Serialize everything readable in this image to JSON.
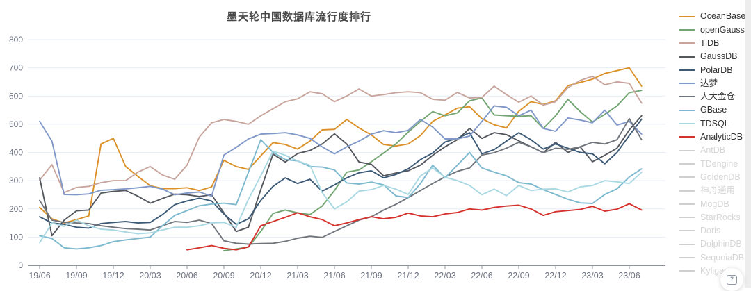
{
  "page": {
    "title": "墨天轮中国数据库流行度排行",
    "help_icon": "?"
  },
  "chart_data": {
    "type": "line",
    "title": "墨天轮中国数据库流行度排行",
    "xlabel": "",
    "ylabel": "",
    "ylim": [
      0,
      800
    ],
    "y_ticks": [
      0,
      100,
      200,
      300,
      400,
      500,
      600,
      700,
      800
    ],
    "x_tick_labels": [
      "19/06",
      "19/09",
      "19/12",
      "20/03",
      "20/06",
      "20/09",
      "20/12",
      "21/03",
      "21/06",
      "21/09",
      "21/12",
      "22/03",
      "22/06",
      "22/09",
      "22/12",
      "23/03",
      "23/06"
    ],
    "x_monthly": [
      "19/06",
      "19/07",
      "19/08",
      "19/09",
      "19/10",
      "19/11",
      "19/12",
      "20/01",
      "20/02",
      "20/03",
      "20/04",
      "20/05",
      "20/06",
      "20/07",
      "20/08",
      "20/09",
      "20/10",
      "20/11",
      "20/12",
      "21/01",
      "21/02",
      "21/03",
      "21/04",
      "21/05",
      "21/06",
      "21/07",
      "21/08",
      "21/09",
      "21/10",
      "21/11",
      "21/12",
      "22/01",
      "22/02",
      "22/03",
      "22/04",
      "22/05",
      "22/06",
      "22/07",
      "22/08",
      "22/09",
      "22/10",
      "22/11",
      "22/12",
      "23/01",
      "23/02",
      "23/03",
      "23/04",
      "23/05",
      "23/06",
      "23/07"
    ],
    "grid": true,
    "legend_position": "right",
    "series": [
      {
        "name": "OceanBase",
        "color": "#db9128",
        "start_index": 0,
        "values": [
          205,
          165,
          150,
          162,
          175,
          430,
          450,
          350,
          315,
          282,
          272,
          272,
          275,
          265,
          278,
          372,
          350,
          340,
          388,
          435,
          428,
          412,
          440,
          480,
          482,
          517,
          487,
          462,
          428,
          423,
          430,
          460,
          510,
          533,
          557,
          562,
          520,
          498,
          487,
          546,
          580,
          570,
          583,
          637,
          648,
          660,
          680,
          690,
          700,
          635
        ]
      },
      {
        "name": "openGauss",
        "color": "#72a572",
        "start_index": 15,
        "values": [
          52,
          58,
          65,
          120,
          184,
          196,
          186,
          180,
          210,
          265,
          330,
          338,
          367,
          398,
          430,
          472,
          510,
          545,
          530,
          540,
          583,
          593,
          533,
          530,
          528,
          530,
          485,
          530,
          588,
          545,
          508,
          535,
          565,
          612,
          620
        ]
      },
      {
        "name": "TiDB",
        "color": "#c7a59d",
        "start_index": 0,
        "values": [
          302,
          357,
          258,
          276,
          280,
          293,
          300,
          300,
          330,
          350,
          320,
          305,
          355,
          455,
          505,
          517,
          510,
          500,
          530,
          555,
          580,
          590,
          615,
          608,
          580,
          600,
          625,
          600,
          605,
          612,
          615,
          612,
          588,
          585,
          613,
          593,
          595,
          635,
          605,
          578,
          600,
          568,
          580,
          630,
          655,
          670,
          640,
          650,
          645,
          575
        ]
      },
      {
        "name": "GaussDB",
        "color": "#54585e",
        "start_index": 0,
        "values": [
          310,
          105,
          160,
          193,
          196,
          256,
          262,
          265,
          245,
          220,
          237,
          252,
          250,
          244,
          250,
          186,
          120,
          135,
          268,
          394,
          366,
          396,
          407,
          430,
          466,
          430,
          366,
          358,
          317,
          327,
          335,
          355,
          390,
          420,
          445,
          485,
          450,
          470,
          463,
          441,
          420,
          399,
          436,
          400,
          420,
          367,
          390,
          415,
          480,
          530
        ]
      },
      {
        "name": "PolarDB",
        "color": "#3c5a76",
        "start_index": 0,
        "values": [
          172,
          150,
          145,
          135,
          132,
          148,
          152,
          155,
          150,
          152,
          180,
          215,
          228,
          238,
          228,
          182,
          145,
          165,
          230,
          280,
          310,
          290,
          305,
          263,
          285,
          310,
          328,
          335,
          310,
          322,
          342,
          375,
          398,
          437,
          450,
          470,
          395,
          410,
          440,
          470,
          445,
          412,
          430,
          415,
          400,
          395,
          360,
          400,
          460,
          518
        ]
      },
      {
        "name": "达梦",
        "color": "#8098c7",
        "start_index": 0,
        "values": [
          510,
          440,
          251,
          250,
          253,
          266,
          268,
          271,
          275,
          280,
          270,
          250,
          256,
          260,
          245,
          391,
          418,
          448,
          465,
          467,
          470,
          462,
          450,
          420,
          395,
          420,
          440,
          465,
          477,
          470,
          478,
          517,
          490,
          448,
          448,
          458,
          510,
          565,
          560,
          530,
          550,
          485,
          475,
          522,
          515,
          505,
          550,
          497,
          510,
          465
        ]
      },
      {
        "name": "人大金仓",
        "color": "#70757c",
        "start_index": 0,
        "values": [
          230,
          160,
          152,
          150,
          148,
          140,
          135,
          130,
          128,
          125,
          140,
          155,
          152,
          160,
          148,
          87,
          78,
          75,
          77,
          78,
          85,
          96,
          103,
          99,
          120,
          140,
          160,
          172,
          196,
          216,
          240,
          265,
          290,
          313,
          333,
          345,
          391,
          399,
          415,
          436,
          420,
          399,
          415,
          411,
          420,
          436,
          430,
          445,
          520,
          445
        ]
      },
      {
        "name": "GBase",
        "color": "#7cb8ce",
        "start_index": 0,
        "values": [
          105,
          95,
          62,
          58,
          62,
          70,
          84,
          90,
          95,
          100,
          140,
          177,
          194,
          211,
          217,
          220,
          215,
          330,
          445,
          400,
          375,
          370,
          350,
          348,
          338,
          292,
          288,
          295,
          285,
          246,
          240,
          290,
          355,
          310,
          355,
          400,
          345,
          330,
          317,
          293,
          288,
          268,
          251,
          234,
          221,
          219,
          251,
          271,
          313,
          342
        ]
      },
      {
        "name": "TDSQL",
        "color": "#a9d8e2",
        "start_index": 0,
        "values": [
          80,
          150,
          138,
          160,
          140,
          128,
          125,
          118,
          112,
          115,
          125,
          135,
          135,
          140,
          150,
          152,
          135,
          234,
          317,
          405,
          390,
          370,
          355,
          258,
          200,
          225,
          263,
          268,
          283,
          270,
          251,
          317,
          345,
          312,
          300,
          283,
          250,
          270,
          247,
          283,
          265,
          270,
          271,
          260,
          278,
          283,
          300,
          296,
          290,
          330
        ]
      },
      {
        "name": "AnalyticDB",
        "color": "#d5312d",
        "start_index": 12,
        "values": [
          55,
          62,
          70,
          60,
          55,
          65,
          140,
          155,
          170,
          186,
          172,
          162,
          140,
          150,
          162,
          172,
          165,
          170,
          185,
          175,
          172,
          182,
          187,
          200,
          196,
          205,
          210,
          213,
          200,
          177,
          190,
          194,
          198,
          209,
          192,
          199,
          218,
          196
        ]
      }
    ],
    "style": {
      "grid_color": "#e7edf6",
      "axis_line_color": "#8f949c",
      "axis_label_color": "#6e7482",
      "line_width": 1.9
    }
  },
  "legend": {
    "disabled_color": "#cfcfcf",
    "items": [
      {
        "label": "OceanBase",
        "color": "#db9128",
        "enabled": true
      },
      {
        "label": "openGauss",
        "color": "#72a572",
        "enabled": true
      },
      {
        "label": "TiDB",
        "color": "#c7a59d",
        "enabled": true
      },
      {
        "label": "GaussDB",
        "color": "#54585e",
        "enabled": true
      },
      {
        "label": "PolarDB",
        "color": "#3c5a76",
        "enabled": true
      },
      {
        "label": "达梦",
        "color": "#8098c7",
        "enabled": true
      },
      {
        "label": "人大金仓",
        "color": "#70757c",
        "enabled": true
      },
      {
        "label": "GBase",
        "color": "#7cb8ce",
        "enabled": true
      },
      {
        "label": "TDSQL",
        "color": "#a9d8e2",
        "enabled": true
      },
      {
        "label": "AnalyticDB",
        "color": "#d5312d",
        "enabled": true
      },
      {
        "label": "AntDB",
        "color": "#cfcfcf",
        "enabled": false
      },
      {
        "label": "TDengine",
        "color": "#cfcfcf",
        "enabled": false
      },
      {
        "label": "GoldenDB",
        "color": "#cfcfcf",
        "enabled": false
      },
      {
        "label": "神舟通用",
        "color": "#cfcfcf",
        "enabled": false
      },
      {
        "label": "MogDB",
        "color": "#cfcfcf",
        "enabled": false
      },
      {
        "label": "StarRocks",
        "color": "#cfcfcf",
        "enabled": false
      },
      {
        "label": "Doris",
        "color": "#cfcfcf",
        "enabled": false
      },
      {
        "label": "DolphinDB",
        "color": "#cfcfcf",
        "enabled": false
      },
      {
        "label": "SequoiaDB",
        "color": "#cfcfcf",
        "enabled": false
      },
      {
        "label": "Kyligence",
        "color": "#cfcfcf",
        "enabled": false
      }
    ]
  }
}
